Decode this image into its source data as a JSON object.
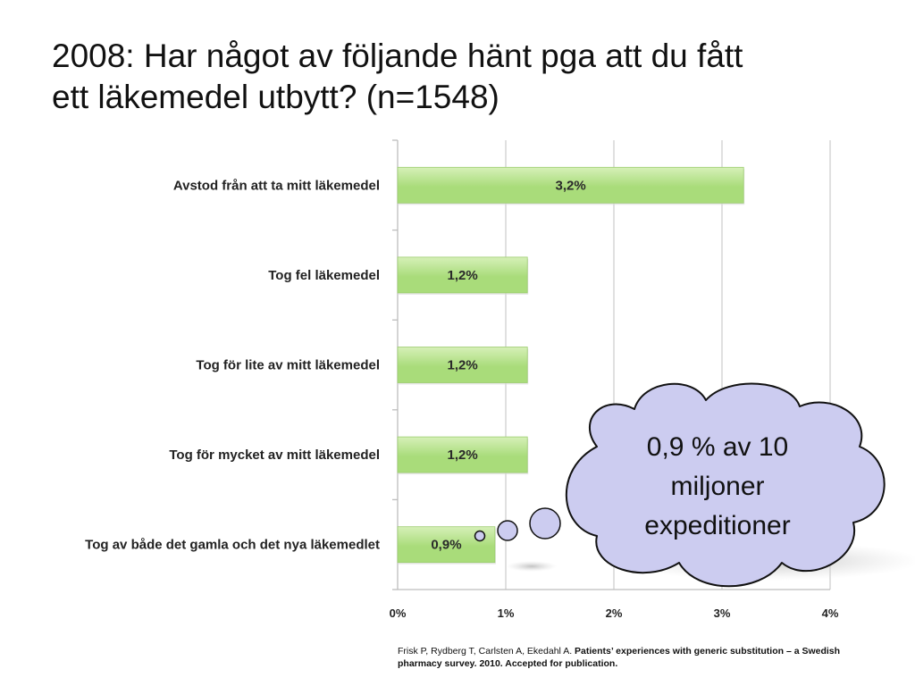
{
  "title": {
    "line1": "2008: Har något av följande hänt pga att du fått",
    "line2": "ett läkemedel utbytt? (n=1548)"
  },
  "chart_data": {
    "type": "bar",
    "orientation": "horizontal",
    "categories": [
      "Avstod från att ta mitt läkemedel",
      "Tog fel läkemedel",
      "Tog för lite av mitt läkemedel",
      "Tog för mycket av mitt läkemedel",
      "Tog av både det gamla och det nya läkemedlet"
    ],
    "values": [
      3.2,
      1.2,
      1.2,
      1.2,
      0.9
    ],
    "data_labels": [
      "3,2%",
      "1,2%",
      "1,2%",
      "1,2%",
      "0,9%"
    ],
    "xlim": [
      0,
      4
    ],
    "x_ticks": [
      0,
      1,
      2,
      3,
      4
    ],
    "x_tick_labels": [
      "0%",
      "1%",
      "2%",
      "3%",
      "4%"
    ],
    "grid": true,
    "bar_color": "#a9dc7a",
    "bar_color_light": "#d6f0b8"
  },
  "callout": {
    "lines": [
      "0,9 % av 10",
      "miljoner",
      "expeditioner"
    ],
    "fill": "#ccccf0",
    "stroke": "#111111"
  },
  "citation": {
    "authors": "Frisk P, Rydberg T, Carlsten A, Ekedahl A.",
    "title": "Patients’ experiences with generic substitution – a Swedish pharmacy survey. 2010. Accepted for publication."
  }
}
